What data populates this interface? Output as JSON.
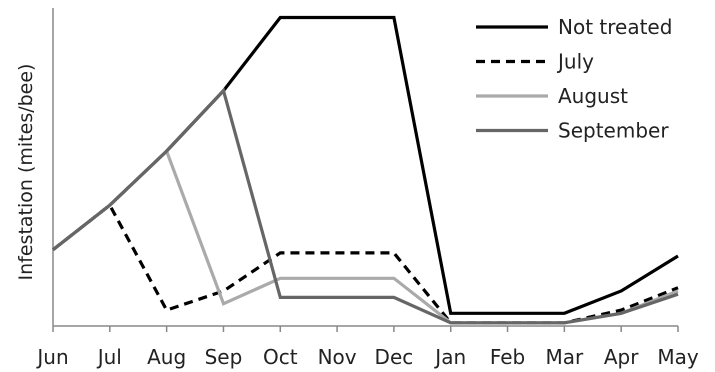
{
  "chart_data": {
    "type": "line",
    "title": "",
    "xlabel": "",
    "ylabel": "Infestation (mites/bee)",
    "categories": [
      "Jun",
      "Jul",
      "Aug",
      "Sep",
      "Oct",
      "Nov",
      "Dec",
      "Jan",
      "Feb",
      "Mar",
      "Apr",
      "May"
    ],
    "ylim": [
      0,
      100
    ],
    "grid": false,
    "legend_position": "top-right",
    "series": [
      {
        "name": "Not treated",
        "color": "#000000",
        "dash": "solid",
        "values": [
          24,
          38,
          55,
          74,
          97,
          97,
          97,
          4,
          4,
          4,
          11,
          22
        ]
      },
      {
        "name": "July",
        "color": "#000000",
        "dash": "dashed",
        "values": [
          24,
          38,
          5,
          11,
          23,
          23,
          23,
          1,
          1,
          1,
          5,
          12
        ]
      },
      {
        "name": "August",
        "color": "#aaaaaa",
        "dash": "solid",
        "values": [
          24,
          38,
          55,
          7,
          15,
          15,
          15,
          1,
          1,
          1,
          4,
          11
        ]
      },
      {
        "name": "September",
        "color": "#666666",
        "dash": "solid",
        "values": [
          24,
          38,
          55,
          74,
          9,
          9,
          9,
          1,
          1,
          1,
          4,
          10
        ]
      }
    ]
  }
}
